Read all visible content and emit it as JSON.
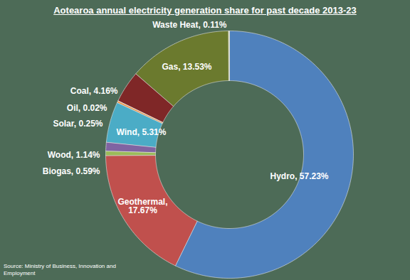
{
  "chart_data": {
    "type": "donut",
    "title": "Aotearoa annual electricity generation share for past decade 2013-23",
    "annotations": [
      "Source: Ministry of Business, Innovation and Employment"
    ],
    "categories": [
      "Hydro",
      "Geothermal",
      "Biogas",
      "Wood",
      "Wind",
      "Solar",
      "Oil",
      "Coal",
      "Gas",
      "Waste Heat"
    ],
    "values": [
      57.23,
      17.67,
      0.59,
      1.14,
      5.31,
      0.25,
      0.02,
      4.16,
      13.53,
      0.11
    ],
    "value_labels": [
      "Hydro, 57.23%",
      "Geothermal,\n17.67%",
      "Biogas, 0.59%",
      "Wood, 1.14%",
      "Wind, 5.31%",
      "Solar, 0.25%",
      "Oil, 0.02%",
      "Coal, 4.16%",
      "Gas, 13.53%",
      "Waste Heat, 0.11%"
    ],
    "colors": [
      "#4f81bd",
      "#c0504d",
      "#9bbb59",
      "#8064a2",
      "#4bacc6",
      "#f79646",
      "#c9b18f",
      "#7f2727",
      "#6b7a2e",
      "#f4f1d0"
    ],
    "data_labels": true
  }
}
